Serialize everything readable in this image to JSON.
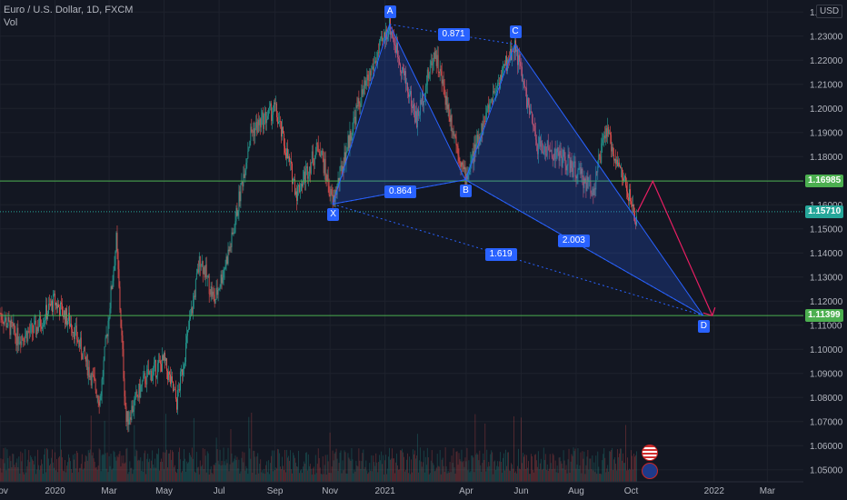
{
  "legend": {
    "symbol": "Euro / U.S. Dollar, 1D, FXCM",
    "volume": "Vol"
  },
  "currency": "USD",
  "chart_data": {
    "type": "candlestick",
    "symbol": "Euro / U.S. Dollar",
    "timeframe": "1D",
    "source": "FXCM",
    "ylim": [
      1.045,
      1.245
    ],
    "xlim": [
      "2019-11-01",
      "2022-04-10"
    ],
    "y_ticks": [
      "1.05000",
      "1.06000",
      "1.07000",
      "1.08000",
      "1.09000",
      "1.10000",
      "1.11000",
      "1.12000",
      "1.13000",
      "1.14000",
      "1.15000",
      "1.16000",
      "1.17000",
      "1.18000",
      "1.19000",
      "1.20000",
      "1.21000",
      "1.22000",
      "1.23000",
      "1.24000"
    ],
    "x_ticks": [
      {
        "label": "Nov",
        "date": "2019-11-01"
      },
      {
        "label": "2020",
        "date": "2020-01-01"
      },
      {
        "label": "Mar",
        "date": "2020-03-01"
      },
      {
        "label": "May",
        "date": "2020-05-01"
      },
      {
        "label": "Jul",
        "date": "2020-07-01"
      },
      {
        "label": "Sep",
        "date": "2020-09-01"
      },
      {
        "label": "Nov",
        "date": "2020-11-01"
      },
      {
        "label": "2021",
        "date": "2021-01-01"
      },
      {
        "label": "Apr",
        "date": "2021-04-01"
      },
      {
        "label": "Jun",
        "date": "2021-06-01"
      },
      {
        "label": "Aug",
        "date": "2021-08-01"
      },
      {
        "label": "Oct",
        "date": "2021-10-01"
      },
      {
        "label": "2022",
        "date": "2022-01-01"
      },
      {
        "label": "Mar",
        "date": "2022-03-01"
      }
    ],
    "price_path": [
      [
        "2019-11-01",
        1.115
      ],
      [
        "2019-11-20",
        1.105
      ],
      [
        "2019-12-10",
        1.108
      ],
      [
        "2019-12-31",
        1.12
      ],
      [
        "2020-01-20",
        1.11
      ],
      [
        "2020-02-20",
        1.079
      ],
      [
        "2020-03-09",
        1.145
      ],
      [
        "2020-03-20",
        1.07
      ],
      [
        "2020-04-10",
        1.088
      ],
      [
        "2020-05-01",
        1.095
      ],
      [
        "2020-05-15",
        1.078
      ],
      [
        "2020-06-10",
        1.138
      ],
      [
        "2020-06-26",
        1.12
      ],
      [
        "2020-07-15",
        1.145
      ],
      [
        "2020-08-05",
        1.19
      ],
      [
        "2020-09-01",
        1.2
      ],
      [
        "2020-09-25",
        1.165
      ],
      [
        "2020-10-20",
        1.185
      ],
      [
        "2020-11-04",
        1.1603
      ],
      [
        "2020-12-01",
        1.2
      ],
      [
        "2021-01-06",
        1.2349
      ],
      [
        "2021-02-05",
        1.195
      ],
      [
        "2021-02-25",
        1.224
      ],
      [
        "2021-03-31",
        1.1704
      ],
      [
        "2021-04-30",
        1.205
      ],
      [
        "2021-05-25",
        1.2266
      ],
      [
        "2021-06-18",
        1.185
      ],
      [
        "2021-07-15",
        1.18
      ],
      [
        "2021-08-20",
        1.1664
      ],
      [
        "2021-09-03",
        1.191
      ],
      [
        "2021-09-25",
        1.168
      ],
      [
        "2021-10-06",
        1.1529
      ],
      [
        "2021-10-08",
        1.1571
      ]
    ],
    "harmonic_pattern": {
      "points": [
        {
          "label": "X",
          "date": "2020-11-04",
          "price": 1.1603
        },
        {
          "label": "A",
          "date": "2021-01-06",
          "price": 1.2349
        },
        {
          "label": "B",
          "date": "2021-03-31",
          "price": 1.1704
        },
        {
          "label": "C",
          "date": "2021-05-25",
          "price": 1.2266
        },
        {
          "label": "D",
          "date": "2021-12-20",
          "price": 1.114
        }
      ],
      "ratios": [
        {
          "value": "0.871",
          "between": "A-C"
        },
        {
          "value": "0.864",
          "between": "X-B"
        },
        {
          "value": "1.619",
          "between": "X-D"
        },
        {
          "value": "2.003",
          "between": "B-D"
        }
      ],
      "projection": [
        [
          "2021-10-08",
          1.1571
        ],
        [
          "2021-10-25",
          1.1698
        ],
        [
          "2021-12-30",
          1.114
        ]
      ]
    },
    "horizontal_levels": [
      {
        "price": 1.16985,
        "label": "1.16985",
        "color": "#4caf50"
      },
      {
        "price": 1.11399,
        "label": "1.11399",
        "color": "#4caf50"
      }
    ],
    "last_price": {
      "price": 1.1571,
      "label": "1.15710",
      "color": "#26a69a"
    }
  },
  "colors": {
    "background": "#131722",
    "up": "#26a69a",
    "down": "#ef5350",
    "pattern": "#2962ff",
    "level": "#4caf50",
    "projection": "#e91e63"
  }
}
